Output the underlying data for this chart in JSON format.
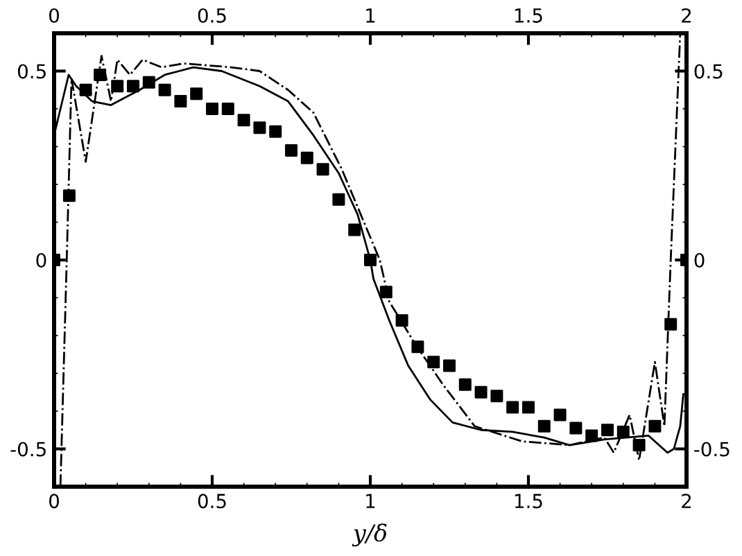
{
  "chart_data": {
    "type": "line",
    "xlabel": "y/δ",
    "xlim": [
      0,
      2
    ],
    "xticks": [
      0,
      0.5,
      1,
      1.5,
      2
    ],
    "x2lim": [
      0,
      2
    ],
    "x2ticks": [
      0,
      0.5,
      1,
      1.5,
      2
    ],
    "ylim": [
      -0.6,
      0.6
    ],
    "yticks": [
      -0.5,
      0,
      0.5
    ],
    "y2lim": [
      -0.6,
      0.6
    ],
    "y2ticks": [
      -0.5,
      0,
      0.5
    ],
    "grid": false,
    "legend": false,
    "series": [
      {
        "type": "scatter",
        "marker": "square",
        "color": "#000000",
        "x": [
          0,
          0.048,
          0.1,
          0.145,
          0.2,
          0.25,
          0.3,
          0.35,
          0.4,
          0.45,
          0.5,
          0.55,
          0.6,
          0.65,
          0.7,
          0.75,
          0.8,
          0.85,
          0.9,
          0.95,
          1.0,
          1.05,
          1.1,
          1.15,
          1.2,
          1.25,
          1.3,
          1.35,
          1.4,
          1.45,
          1.5,
          1.55,
          1.6,
          1.65,
          1.7,
          1.75,
          1.8,
          1.85,
          1.9,
          1.95,
          2.0
        ],
        "values": [
          0,
          0.17,
          0.45,
          0.49,
          0.46,
          0.46,
          0.47,
          0.45,
          0.42,
          0.44,
          0.4,
          0.4,
          0.37,
          0.35,
          0.34,
          0.29,
          0.27,
          0.24,
          0.16,
          0.08,
          0.0,
          -0.085,
          -0.16,
          -0.23,
          -0.27,
          -0.28,
          -0.33,
          -0.35,
          -0.36,
          -0.39,
          -0.39,
          -0.44,
          -0.41,
          -0.445,
          -0.465,
          -0.45,
          -0.455,
          -0.49,
          -0.44,
          -0.17,
          0.0
        ]
      },
      {
        "line_style": "solid",
        "color": "#000000",
        "x": [
          0,
          0.046,
          0.07,
          0.12,
          0.18,
          0.27,
          0.35,
          0.44,
          0.53,
          0.65,
          0.74,
          0.82,
          0.9,
          0.96,
          1.0,
          1.01,
          1.06,
          1.12,
          1.19,
          1.26,
          1.35,
          1.45,
          1.55,
          1.63,
          1.74,
          1.88,
          1.94,
          1.96,
          1.98,
          1.99
        ],
        "values": [
          0.33,
          0.49,
          0.46,
          0.42,
          0.41,
          0.45,
          0.49,
          0.51,
          0.5,
          0.46,
          0.42,
          0.33,
          0.23,
          0.12,
          0.0,
          -0.05,
          -0.16,
          -0.28,
          -0.37,
          -0.43,
          -0.45,
          -0.455,
          -0.47,
          -0.49,
          -0.475,
          -0.465,
          -0.51,
          -0.5,
          -0.44,
          -0.355
        ]
      },
      {
        "line_style": "dashdot",
        "color": "#000000",
        "x": [
          0.02,
          0.04,
          0.055,
          0.1,
          0.15,
          0.18,
          0.2,
          0.24,
          0.28,
          0.34,
          0.41,
          0.56,
          0.65,
          0.74,
          0.82,
          0.91,
          0.98,
          1.03,
          1.06,
          1.14,
          1.23,
          1.33,
          1.48,
          1.63,
          1.74,
          1.77,
          1.82,
          1.85,
          1.9,
          1.93,
          1.95,
          1.98
        ],
        "values": [
          -0.6,
          0.0,
          0.48,
          0.26,
          0.54,
          0.42,
          0.53,
          0.49,
          0.53,
          0.51,
          0.52,
          0.51,
          0.5,
          0.45,
          0.39,
          0.24,
          0.1,
          0.0,
          -0.11,
          -0.22,
          -0.33,
          -0.44,
          -0.48,
          -0.49,
          -0.47,
          -0.51,
          -0.41,
          -0.53,
          -0.27,
          -0.44,
          0.0,
          0.6
        ]
      }
    ]
  }
}
